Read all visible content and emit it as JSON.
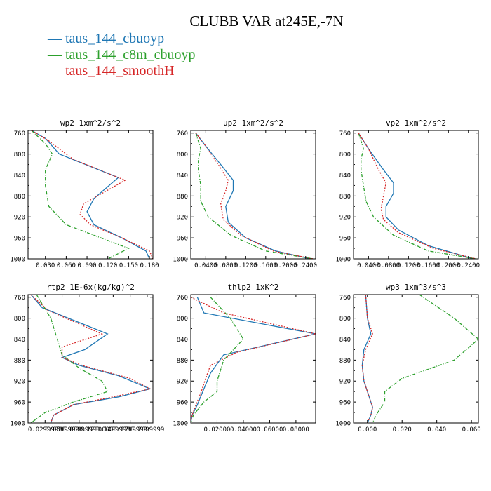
{
  "title": "CLUBB VAR at245E,-7N",
  "legend": [
    {
      "label": "taus_144_cbuoyp",
      "color": "#1f77b4"
    },
    {
      "label": "taus_144_c8m_cbuoyp",
      "color": "#2ca02c"
    },
    {
      "label": "taus_144_smoothH",
      "color": "#d62728"
    }
  ],
  "chart_data": [
    {
      "type": "line",
      "title": "wp2  1xm^2/s^2",
      "xlim": [
        0.005,
        0.185
      ],
      "ylim": [
        1000,
        755
      ],
      "xticks": [
        0.03,
        0.06,
        0.09,
        0.12,
        0.15,
        0.18
      ],
      "xtick_labels": [
        "0.030",
        "0.060",
        "0.090",
        "0.120",
        "0.150",
        "0.180"
      ],
      "yticks": [
        760,
        800,
        840,
        880,
        920,
        960,
        1000
      ],
      "series": [
        {
          "name": "taus_144_cbuoyp",
          "style": "solid",
          "points": [
            [
              0.01,
              755
            ],
            [
              0.03,
              770
            ],
            [
              0.05,
              800
            ],
            [
              0.135,
              845
            ],
            [
              0.1,
              885
            ],
            [
              0.09,
              910
            ],
            [
              0.1,
              935
            ],
            [
              0.14,
              960
            ],
            [
              0.175,
              985
            ],
            [
              0.18,
              1000
            ]
          ]
        },
        {
          "name": "taus_144_c8m_cbuoyp",
          "style": "dashdot",
          "points": [
            [
              0.01,
              755
            ],
            [
              0.03,
              780
            ],
            [
              0.04,
              800
            ],
            [
              0.03,
              830
            ],
            [
              0.03,
              860
            ],
            [
              0.035,
              900
            ],
            [
              0.06,
              935
            ],
            [
              0.11,
              960
            ],
            [
              0.15,
              980
            ],
            [
              0.12,
              1000
            ]
          ]
        },
        {
          "name": "taus_144_smoothH",
          "style": "dotted",
          "points": [
            [
              0.01,
              755
            ],
            [
              0.035,
              775
            ],
            [
              0.07,
              810
            ],
            [
              0.145,
              850
            ],
            [
              0.085,
              895
            ],
            [
              0.08,
              915
            ],
            [
              0.095,
              935
            ],
            [
              0.14,
              960
            ],
            [
              0.18,
              985
            ],
            [
              0.185,
              1000
            ]
          ]
        }
      ]
    },
    {
      "type": "line",
      "title": "up2  1xm^2/s^2",
      "xlim": [
        0.01,
        0.26
      ],
      "ylim": [
        1000,
        755
      ],
      "xticks": [
        0.04,
        0.08,
        0.12,
        0.16,
        0.2,
        0.24
      ],
      "xtick_labels": [
        "0.0400",
        "0.0800",
        "0.1200",
        "0.1600",
        "0.2000",
        "0.2400"
      ],
      "yticks": [
        760,
        800,
        840,
        880,
        920,
        960,
        1000
      ],
      "series": [
        {
          "name": "taus_144_cbuoyp",
          "style": "solid",
          "points": [
            [
              0.02,
              760
            ],
            [
              0.04,
              785
            ],
            [
              0.07,
              820
            ],
            [
              0.095,
              850
            ],
            [
              0.095,
              870
            ],
            [
              0.08,
              900
            ],
            [
              0.085,
              930
            ],
            [
              0.12,
              960
            ],
            [
              0.18,
              985
            ],
            [
              0.25,
              1000
            ]
          ]
        },
        {
          "name": "taus_144_c8m_cbuoyp",
          "style": "dashdot",
          "points": [
            [
              0.02,
              760
            ],
            [
              0.03,
              790
            ],
            [
              0.025,
              810
            ],
            [
              0.025,
              830
            ],
            [
              0.03,
              860
            ],
            [
              0.03,
              890
            ],
            [
              0.045,
              920
            ],
            [
              0.09,
              955
            ],
            [
              0.16,
              985
            ],
            [
              0.255,
              1000
            ]
          ]
        },
        {
          "name": "taus_144_smoothH",
          "style": "dotted",
          "points": [
            [
              0.02,
              760
            ],
            [
              0.04,
              785
            ],
            [
              0.065,
              820
            ],
            [
              0.085,
              850
            ],
            [
              0.08,
              870
            ],
            [
              0.07,
              895
            ],
            [
              0.075,
              925
            ],
            [
              0.11,
              955
            ],
            [
              0.175,
              985
            ],
            [
              0.255,
              1000
            ]
          ]
        }
      ]
    },
    {
      "type": "line",
      "title": "vp2  1xm^2/s^2",
      "xlim": [
        0.01,
        0.26
      ],
      "ylim": [
        1000,
        755
      ],
      "xticks": [
        0.04,
        0.08,
        0.12,
        0.16,
        0.2,
        0.24
      ],
      "xtick_labels": [
        "0.0400",
        "0.0800",
        "0.1200",
        "0.1600",
        "0.2000",
        "0.2400"
      ],
      "yticks": [
        760,
        800,
        840,
        880,
        920,
        960,
        1000
      ],
      "series": [
        {
          "name": "taus_144_cbuoyp",
          "style": "solid",
          "points": [
            [
              0.02,
              760
            ],
            [
              0.04,
              790
            ],
            [
              0.07,
              830
            ],
            [
              0.09,
              855
            ],
            [
              0.09,
              875
            ],
            [
              0.075,
              900
            ],
            [
              0.075,
              920
            ],
            [
              0.1,
              945
            ],
            [
              0.16,
              975
            ],
            [
              0.25,
              1000
            ]
          ]
        },
        {
          "name": "taus_144_c8m_cbuoyp",
          "style": "dashdot",
          "points": [
            [
              0.02,
              760
            ],
            [
              0.03,
              790
            ],
            [
              0.025,
              810
            ],
            [
              0.025,
              830
            ],
            [
              0.03,
              860
            ],
            [
              0.035,
              890
            ],
            [
              0.05,
              920
            ],
            [
              0.09,
              955
            ],
            [
              0.16,
              985
            ],
            [
              0.255,
              1000
            ]
          ]
        },
        {
          "name": "taus_144_smoothH",
          "style": "dotted",
          "points": [
            [
              0.02,
              760
            ],
            [
              0.04,
              790
            ],
            [
              0.06,
              830
            ],
            [
              0.075,
              855
            ],
            [
              0.07,
              880
            ],
            [
              0.065,
              905
            ],
            [
              0.07,
              925
            ],
            [
              0.1,
              950
            ],
            [
              0.17,
              980
            ],
            [
              0.255,
              1000
            ]
          ]
        }
      ]
    },
    {
      "type": "line",
      "title": "rtp2  1E-6x(kg/kg)^2",
      "xlim": [
        0.0,
        0.22
      ],
      "ylim": [
        1000,
        755
      ],
      "xticks": [
        0.03,
        0.06,
        0.09,
        0.12,
        0.15,
        0.18,
        0.21
      ],
      "xtick_labels": [
        "0.0299999",
        "0.0599999",
        "0.0899999",
        "0.1200000",
        "0.1499999",
        "0.1799999",
        "0.2099999"
      ],
      "yticks": [
        760,
        800,
        840,
        880,
        920,
        960,
        1000
      ],
      "series": [
        {
          "name": "taus_144_cbuoyp",
          "style": "solid",
          "points": [
            [
              0.005,
              755
            ],
            [
              0.025,
              780
            ],
            [
              0.14,
              830
            ],
            [
              0.1,
              860
            ],
            [
              0.06,
              875
            ],
            [
              0.09,
              890
            ],
            [
              0.16,
              910
            ],
            [
              0.215,
              935
            ],
            [
              0.16,
              950
            ],
            [
              0.08,
              965
            ],
            [
              0.045,
              985
            ],
            [
              0.04,
              1000
            ]
          ]
        },
        {
          "name": "taus_144_c8m_cbuoyp",
          "style": "dashdot",
          "points": [
            [
              0.015,
              755
            ],
            [
              0.04,
              800
            ],
            [
              0.06,
              870
            ],
            [
              0.09,
              895
            ],
            [
              0.13,
              920
            ],
            [
              0.14,
              940
            ],
            [
              0.08,
              960
            ],
            [
              0.03,
              980
            ],
            [
              0.005,
              1000
            ]
          ]
        },
        {
          "name": "taus_144_smoothH",
          "style": "dotted",
          "points": [
            [
              0.005,
              755
            ],
            [
              0.035,
              785
            ],
            [
              0.13,
              830
            ],
            [
              0.06,
              855
            ],
            [
              0.06,
              875
            ],
            [
              0.095,
              890
            ],
            [
              0.18,
              915
            ],
            [
              0.215,
              935
            ],
            [
              0.15,
              950
            ],
            [
              0.08,
              965
            ],
            [
              0.045,
              985
            ],
            [
              0.04,
              1000
            ]
          ]
        }
      ]
    },
    {
      "type": "line",
      "title": "thlp2  1xK^2",
      "xlim": [
        0.0,
        0.095
      ],
      "ylim": [
        1000,
        755
      ],
      "xticks": [
        0.02,
        0.04,
        0.06,
        0.08
      ],
      "xtick_labels": [
        "0.02000",
        "0.04000",
        "0.06000",
        "0.08000"
      ],
      "yticks": [
        760,
        800,
        840,
        880,
        920,
        960,
        1000
      ],
      "series": [
        {
          "name": "taus_144_cbuoyp",
          "style": "solid",
          "points": [
            [
              0.005,
              760
            ],
            [
              0.01,
              790
            ],
            [
              0.095,
              830
            ],
            [
              0.025,
              870
            ],
            [
              0.015,
              905
            ],
            [
              0.01,
              935
            ],
            [
              0.005,
              965
            ],
            [
              0.001,
              985
            ],
            [
              0.0,
              1000
            ]
          ]
        },
        {
          "name": "taus_144_c8m_cbuoyp",
          "style": "dashdot",
          "points": [
            [
              0.015,
              760
            ],
            [
              0.03,
              800
            ],
            [
              0.04,
              840
            ],
            [
              0.025,
              880
            ],
            [
              0.02,
              920
            ],
            [
              0.02,
              940
            ],
            [
              0.01,
              960
            ],
            [
              0.002,
              985
            ],
            [
              0.0,
              1000
            ]
          ]
        },
        {
          "name": "taus_144_smoothH",
          "style": "dotted",
          "points": [
            [
              0.0,
              760
            ],
            [
              0.025,
              790
            ],
            [
              0.095,
              830
            ],
            [
              0.035,
              865
            ],
            [
              0.015,
              890
            ],
            [
              0.012,
              910
            ],
            [
              0.008,
              940
            ],
            [
              0.004,
              965
            ],
            [
              0.001,
              985
            ],
            [
              0.0,
              1000
            ]
          ]
        }
      ]
    },
    {
      "type": "line",
      "title": "wp3  1xm^3/s^3",
      "xlim": [
        -0.008,
        0.064
      ],
      "ylim": [
        1000,
        755
      ],
      "xticks": [
        0.0,
        0.02,
        0.04,
        0.06
      ],
      "xtick_labels": [
        "0.000",
        "0.020",
        "0.040",
        "0.060"
      ],
      "yticks": [
        760,
        800,
        840,
        880,
        920,
        960,
        1000
      ],
      "series": [
        {
          "name": "taus_144_cbuoyp",
          "style": "solid",
          "points": [
            [
              -0.001,
              755
            ],
            [
              0.0,
              800
            ],
            [
              0.002,
              830
            ],
            [
              -0.002,
              860
            ],
            [
              -0.003,
              890
            ],
            [
              -0.002,
              920
            ],
            [
              0.001,
              950
            ],
            [
              0.003,
              970
            ],
            [
              0.002,
              985
            ],
            [
              0.0,
              1000
            ]
          ]
        },
        {
          "name": "taus_144_c8m_cbuoyp",
          "style": "dashdot",
          "points": [
            [
              0.03,
              755
            ],
            [
              0.05,
              800
            ],
            [
              0.064,
              840
            ],
            [
              0.05,
              880
            ],
            [
              0.02,
              915
            ],
            [
              0.01,
              940
            ],
            [
              0.01,
              960
            ],
            [
              0.005,
              985
            ],
            [
              0.003,
              1000
            ]
          ]
        },
        {
          "name": "taus_144_smoothH",
          "style": "dotted",
          "points": [
            [
              -0.001,
              755
            ],
            [
              0.0,
              800
            ],
            [
              0.003,
              830
            ],
            [
              -0.001,
              860
            ],
            [
              -0.003,
              890
            ],
            [
              -0.002,
              920
            ],
            [
              0.001,
              950
            ],
            [
              0.003,
              970
            ],
            [
              0.002,
              985
            ],
            [
              0.0,
              1000
            ]
          ]
        }
      ]
    }
  ]
}
